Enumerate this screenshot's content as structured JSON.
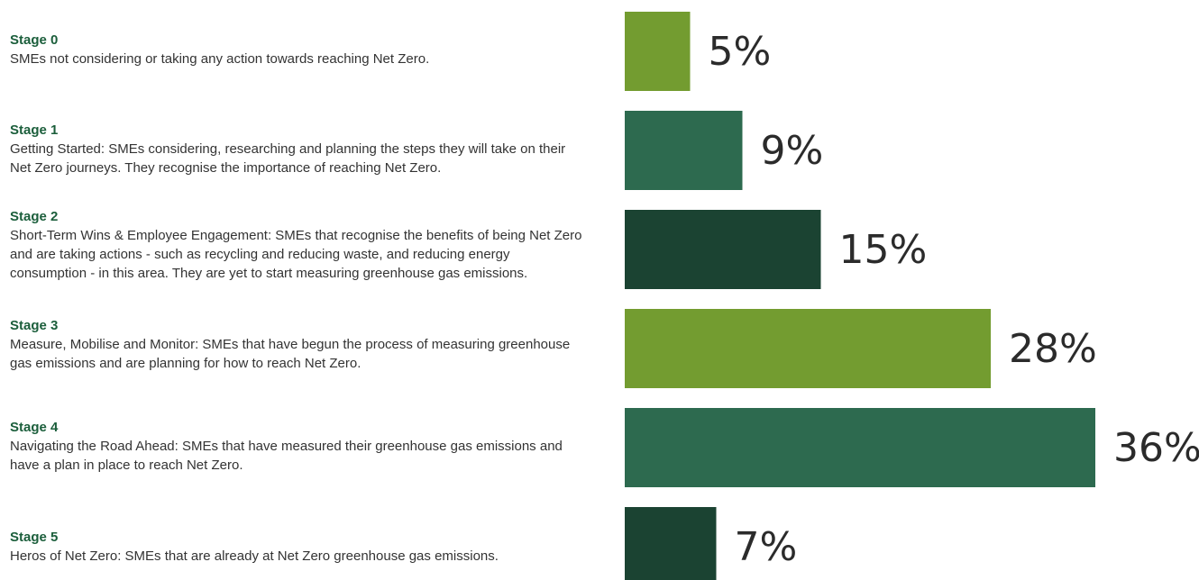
{
  "stages": [
    {
      "title": "Stage 0",
      "description": "SMEs not considering or taking any action towards reaching Net Zero."
    },
    {
      "title": "Stage 1",
      "description": "Getting Started: SMEs considering, researching and planning the steps they will take on their Net Zero journeys. They recognise the importance of reaching Net Zero."
    },
    {
      "title": "Stage 2",
      "description": "Short-Term Wins & Employee Engagement: SMEs that recognise the benefits of being Net Zero and are taking actions - such as recycling and reducing waste, and reducing energy consumption - in this area. They are yet to start measuring greenhouse gas emissions."
    },
    {
      "title": "Stage 3",
      "description": "Measure, Mobilise and Monitor: SMEs that have begun the process of measuring greenhouse gas emissions and are planning for how to reach Net Zero."
    },
    {
      "title": "Stage 4",
      "description": "Navigating the Road Ahead: SMEs that have measured their greenhouse gas emissions and have a plan in place to reach Net Zero."
    },
    {
      "title": "Stage 5",
      "description": "Heros of Net Zero: SMEs that are already at Net Zero greenhouse gas emissions."
    }
  ],
  "chart_data": {
    "type": "bar",
    "orientation": "horizontal",
    "categories": [
      "Stage 0",
      "Stage 1",
      "Stage 2",
      "Stage 3",
      "Stage 4",
      "Stage 5"
    ],
    "values": [
      5,
      9,
      15,
      28,
      36,
      7
    ],
    "value_labels": [
      "5%",
      "9%",
      "15%",
      "28%",
      "36%",
      "7%"
    ],
    "colors": [
      "#739c30",
      "#2d6a4f",
      "#1b4332",
      "#739c30",
      "#2d6a4f",
      "#1b4332"
    ],
    "title": "",
    "xlabel": "",
    "ylabel": "",
    "xlim": [
      0,
      36
    ],
    "grid": false,
    "legend": "none"
  }
}
